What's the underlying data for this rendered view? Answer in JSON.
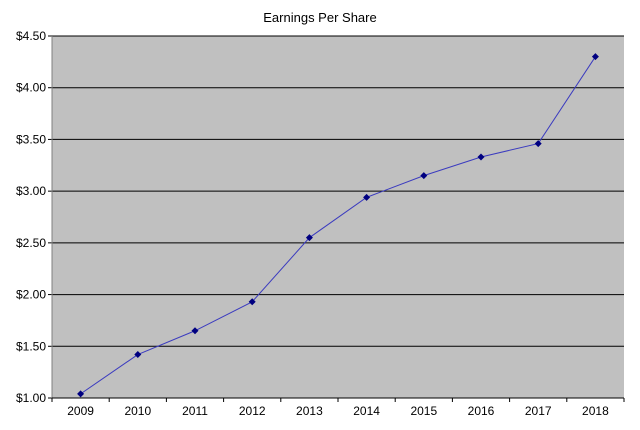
{
  "chart_data": {
    "type": "line",
    "title": "Earnings Per Share",
    "categories": [
      "2009",
      "2010",
      "2011",
      "2012",
      "2013",
      "2014",
      "2015",
      "2016",
      "2017",
      "2018"
    ],
    "series": [
      {
        "values": [
          1.04,
          1.42,
          1.65,
          1.93,
          2.55,
          2.94,
          3.15,
          3.33,
          3.46,
          4.3
        ]
      }
    ],
    "ylim": [
      1.0,
      4.5
    ],
    "y_ticks": [
      1.0,
      1.5,
      2.0,
      2.5,
      3.0,
      3.5,
      4.0,
      4.5
    ],
    "y_tick_labels": [
      "$1.00",
      "$1.50",
      "$2.00",
      "$2.50",
      "$3.00",
      "$3.50",
      "$4.00",
      "$4.50"
    ],
    "xlabel": "",
    "ylabel": "",
    "grid": "horizontal",
    "legend": "none",
    "colors": {
      "plot_background": "#c0c0c0",
      "gridline": "#000000",
      "line": "#3b3bbf",
      "marker": "#000080"
    },
    "marker": "diamond"
  }
}
